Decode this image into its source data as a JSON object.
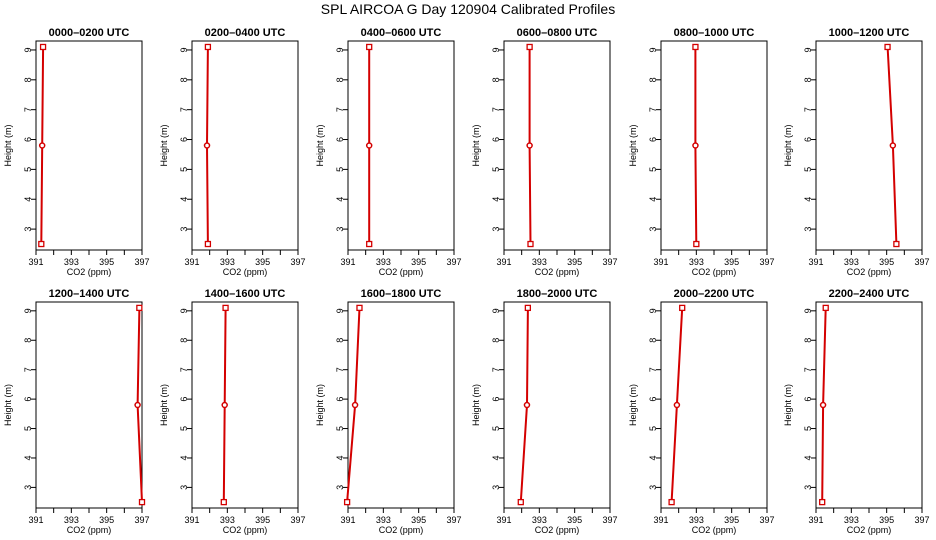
{
  "title": "SPL AIRCOA G  Day 120904  Calibrated Profiles",
  "colors": {
    "profile": "#d40000",
    "axis": "#000000",
    "background": "#ffffff"
  },
  "chart_data": [
    {
      "type": "line",
      "title": "0000–0200 UTC",
      "xlabel": "CO2 (ppm)",
      "ylabel": "Height (m)",
      "xlim": [
        391,
        397
      ],
      "ylim": [
        2.3,
        9.3
      ],
      "xticks": [
        391,
        392,
        393,
        394,
        395,
        396,
        397
      ],
      "xticklabels": [
        "391",
        "393",
        "395",
        "397"
      ],
      "yticks": [
        3,
        4,
        5,
        6,
        7,
        8,
        9
      ],
      "series": [
        {
          "x": [
            391.3,
            391.35,
            391.4
          ],
          "y": [
            2.5,
            5.8,
            9.1
          ]
        }
      ]
    },
    {
      "type": "line",
      "title": "0200–0400 UTC",
      "xlabel": "CO2 (ppm)",
      "ylabel": "Height (m)",
      "xlim": [
        391,
        397
      ],
      "ylim": [
        2.3,
        9.3
      ],
      "xticks": [
        391,
        392,
        393,
        394,
        395,
        396,
        397
      ],
      "xticklabels": [
        "391",
        "393",
        "395",
        "397"
      ],
      "yticks": [
        3,
        4,
        5,
        6,
        7,
        8,
        9
      ],
      "series": [
        {
          "x": [
            391.9,
            391.85,
            391.9
          ],
          "y": [
            2.5,
            5.8,
            9.1
          ]
        }
      ]
    },
    {
      "type": "line",
      "title": "0400–0600 UTC",
      "xlabel": "CO2 (ppm)",
      "ylabel": "Height (m)",
      "xlim": [
        391,
        397
      ],
      "ylim": [
        2.3,
        9.3
      ],
      "xticks": [
        391,
        392,
        393,
        394,
        395,
        396,
        397
      ],
      "xticklabels": [
        "391",
        "393",
        "395",
        "397"
      ],
      "yticks": [
        3,
        4,
        5,
        6,
        7,
        8,
        9
      ],
      "series": [
        {
          "x": [
            392.2,
            392.2,
            392.2
          ],
          "y": [
            2.5,
            5.8,
            9.1
          ]
        }
      ]
    },
    {
      "type": "line",
      "title": "0600–0800 UTC",
      "xlabel": "CO2 (ppm)",
      "ylabel": "Height (m)",
      "xlim": [
        391,
        397
      ],
      "ylim": [
        2.3,
        9.3
      ],
      "xticks": [
        391,
        392,
        393,
        394,
        395,
        396,
        397
      ],
      "xticklabels": [
        "391",
        "393",
        "395",
        "397"
      ],
      "yticks": [
        3,
        4,
        5,
        6,
        7,
        8,
        9
      ],
      "series": [
        {
          "x": [
            392.5,
            392.45,
            392.45
          ],
          "y": [
            2.5,
            5.8,
            9.1
          ]
        }
      ]
    },
    {
      "type": "line",
      "title": "0800–1000 UTC",
      "xlabel": "CO2 (ppm)",
      "ylabel": "Height (m)",
      "xlim": [
        391,
        397
      ],
      "ylim": [
        2.3,
        9.3
      ],
      "xticks": [
        391,
        392,
        393,
        394,
        395,
        396,
        397
      ],
      "xticklabels": [
        "391",
        "393",
        "395",
        "397"
      ],
      "yticks": [
        3,
        4,
        5,
        6,
        7,
        8,
        9
      ],
      "series": [
        {
          "x": [
            393.0,
            392.95,
            392.95
          ],
          "y": [
            2.5,
            5.8,
            9.1
          ]
        }
      ]
    },
    {
      "type": "line",
      "title": "1000–1200 UTC",
      "xlabel": "CO2 (ppm)",
      "ylabel": "Height (m)",
      "xlim": [
        391,
        397
      ],
      "ylim": [
        2.3,
        9.3
      ],
      "xticks": [
        391,
        392,
        393,
        394,
        395,
        396,
        397
      ],
      "xticklabels": [
        "391",
        "393",
        "395",
        "397"
      ],
      "yticks": [
        3,
        4,
        5,
        6,
        7,
        8,
        9
      ],
      "series": [
        {
          "x": [
            395.55,
            395.35,
            395.05
          ],
          "y": [
            2.5,
            5.8,
            9.1
          ]
        }
      ]
    },
    {
      "type": "line",
      "title": "1200–1400 UTC",
      "xlabel": "CO2 (ppm)",
      "ylabel": "Height (m)",
      "xlim": [
        391,
        397
      ],
      "ylim": [
        2.3,
        9.3
      ],
      "xticks": [
        391,
        392,
        393,
        394,
        395,
        396,
        397
      ],
      "xticklabels": [
        "391",
        "393",
        "395",
        "397"
      ],
      "yticks": [
        3,
        4,
        5,
        6,
        7,
        8,
        9
      ],
      "series": [
        {
          "x": [
            397.0,
            396.75,
            396.85
          ],
          "y": [
            2.5,
            5.8,
            9.1
          ]
        }
      ]
    },
    {
      "type": "line",
      "title": "1400–1600 UTC",
      "xlabel": "CO2 (ppm)",
      "ylabel": "Height (m)",
      "xlim": [
        391,
        397
      ],
      "ylim": [
        2.3,
        9.3
      ],
      "xticks": [
        391,
        392,
        393,
        394,
        395,
        396,
        397
      ],
      "xticklabels": [
        "391",
        "393",
        "395",
        "397"
      ],
      "yticks": [
        3,
        4,
        5,
        6,
        7,
        8,
        9
      ],
      "series": [
        {
          "x": [
            392.8,
            392.85,
            392.9
          ],
          "y": [
            2.5,
            5.8,
            9.1
          ]
        }
      ]
    },
    {
      "type": "line",
      "title": "1600–1800 UTC",
      "xlabel": "CO2 (ppm)",
      "ylabel": "Height (m)",
      "xlim": [
        391,
        397
      ],
      "ylim": [
        2.3,
        9.3
      ],
      "xticks": [
        391,
        392,
        393,
        394,
        395,
        396,
        397
      ],
      "xticklabels": [
        "391",
        "393",
        "395",
        "397"
      ],
      "yticks": [
        3,
        4,
        5,
        6,
        7,
        8,
        9
      ],
      "series": [
        {
          "x": [
            390.95,
            391.4,
            391.65
          ],
          "y": [
            2.5,
            5.8,
            9.1
          ]
        }
      ]
    },
    {
      "type": "line",
      "title": "1800–2000 UTC",
      "xlabel": "CO2 (ppm)",
      "ylabel": "Height (m)",
      "xlim": [
        391,
        397
      ],
      "ylim": [
        2.3,
        9.3
      ],
      "xticks": [
        391,
        392,
        393,
        394,
        395,
        396,
        397
      ],
      "xticklabels": [
        "391",
        "393",
        "395",
        "397"
      ],
      "yticks": [
        3,
        4,
        5,
        6,
        7,
        8,
        9
      ],
      "series": [
        {
          "x": [
            391.95,
            392.3,
            392.35
          ],
          "y": [
            2.5,
            5.8,
            9.1
          ]
        }
      ]
    },
    {
      "type": "line",
      "title": "2000–2200 UTC",
      "xlabel": "CO2 (ppm)",
      "ylabel": "Height (m)",
      "xlim": [
        391,
        397
      ],
      "ylim": [
        2.3,
        9.3
      ],
      "xticks": [
        391,
        392,
        393,
        394,
        395,
        396,
        397
      ],
      "xticklabels": [
        "391",
        "393",
        "395",
        "397"
      ],
      "yticks": [
        3,
        4,
        5,
        6,
        7,
        8,
        9
      ],
      "series": [
        {
          "x": [
            391.6,
            391.9,
            392.2
          ],
          "y": [
            2.5,
            5.8,
            9.1
          ]
        }
      ]
    },
    {
      "type": "line",
      "title": "2200–2400 UTC",
      "xlabel": "CO2 (ppm)",
      "ylabel": "Height (m)",
      "xlim": [
        391,
        397
      ],
      "ylim": [
        2.3,
        9.3
      ],
      "xticks": [
        391,
        392,
        393,
        394,
        395,
        396,
        397
      ],
      "xticklabels": [
        "391",
        "393",
        "395",
        "397"
      ],
      "yticks": [
        3,
        4,
        5,
        6,
        7,
        8,
        9
      ],
      "series": [
        {
          "x": [
            391.35,
            391.4,
            391.55
          ],
          "y": [
            2.5,
            5.8,
            9.1
          ]
        }
      ]
    }
  ]
}
